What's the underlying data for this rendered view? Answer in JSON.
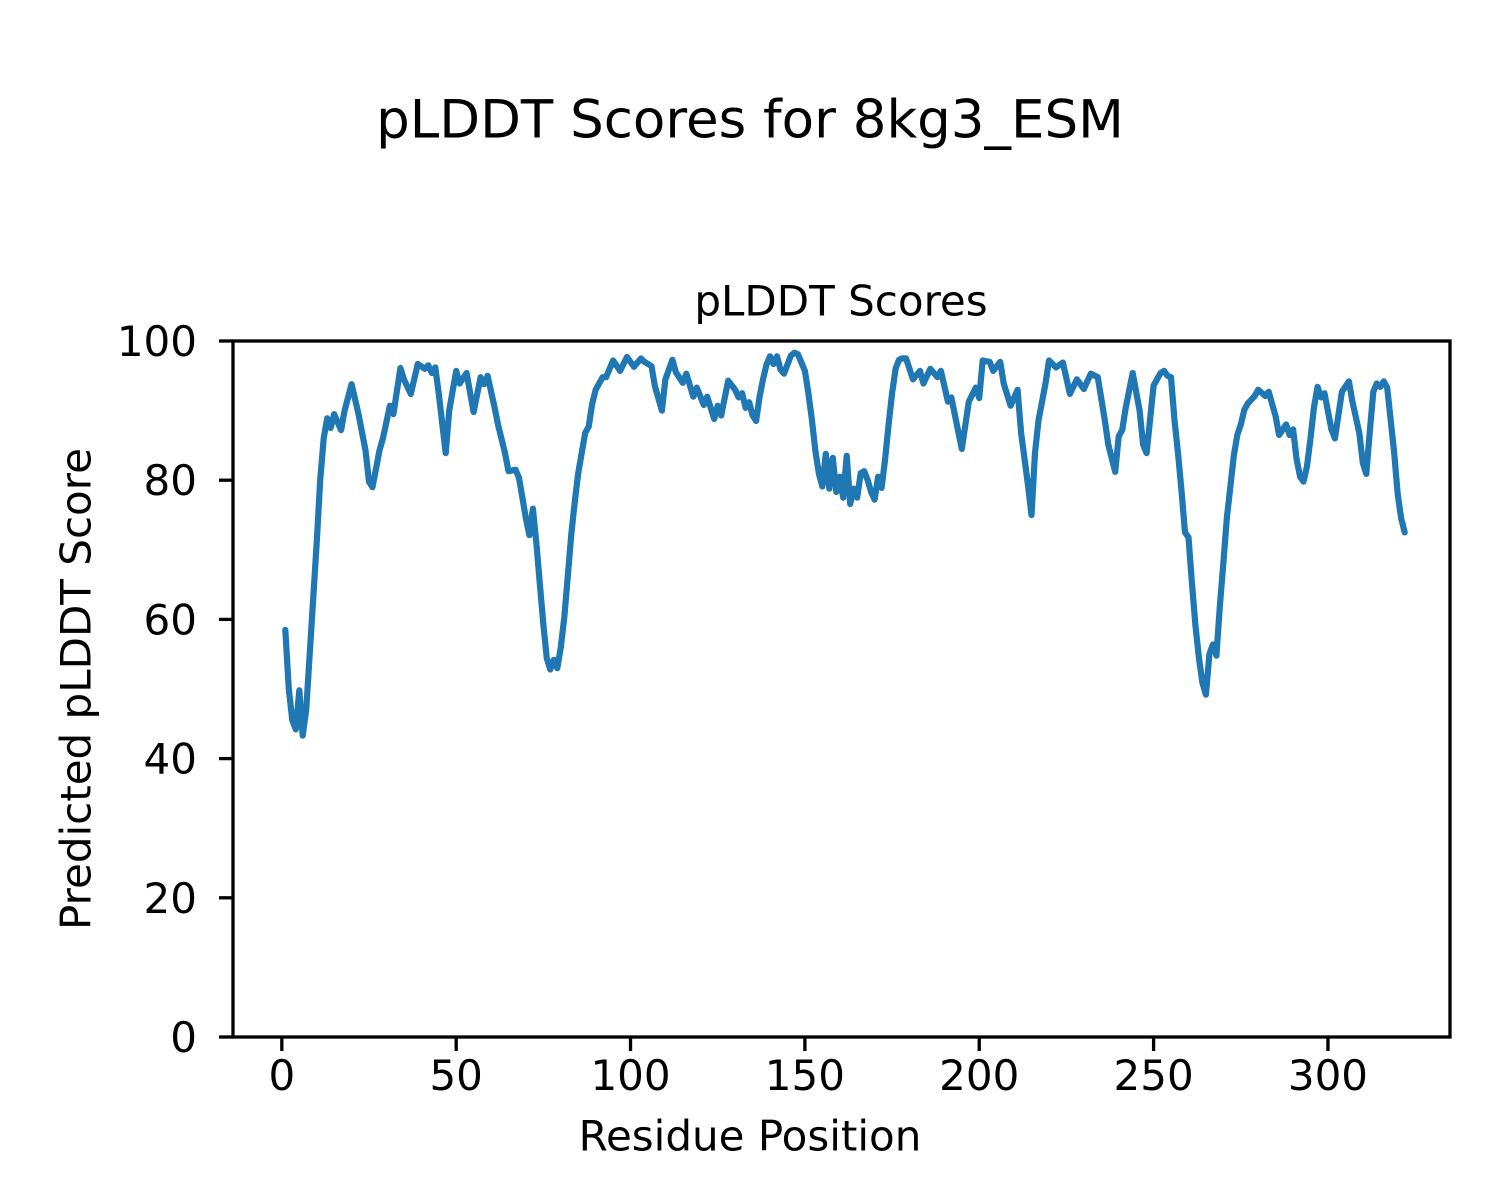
{
  "figure": {
    "suptitle": "pLDDT Scores for 8kg3_ESM",
    "axes_title": "pLDDT Scores",
    "xlabel": "Residue Position",
    "ylabel": "Predicted pLDDT Score",
    "background_color": "#ffffff",
    "line_color": "#1f77b4",
    "axis_color": "#000000"
  },
  "chart_data": {
    "type": "line",
    "title": "pLDDT Scores",
    "xlabel": "Residue Position",
    "ylabel": "Predicted pLDDT Score",
    "xlim": [
      -14,
      335
    ],
    "ylim": [
      0,
      100
    ],
    "xticks": [
      0,
      50,
      100,
      150,
      200,
      250,
      300
    ],
    "yticks": [
      0,
      20,
      40,
      60,
      80,
      100
    ],
    "grid": false,
    "legend_position": "none",
    "series": [
      {
        "name": "pLDDT",
        "color": "#1f77b4",
        "points": [
          [
            1,
            58.5
          ],
          [
            2,
            50
          ],
          [
            3,
            45.5
          ],
          [
            4,
            44.2
          ],
          [
            5,
            49.8
          ],
          [
            6,
            43.3
          ],
          [
            7,
            47
          ],
          [
            8,
            55
          ],
          [
            9,
            63
          ],
          [
            10,
            71
          ],
          [
            11,
            80
          ],
          [
            12,
            86
          ],
          [
            13,
            88.9
          ],
          [
            14,
            87.5
          ],
          [
            15,
            89.5
          ],
          [
            17,
            87.2
          ],
          [
            18,
            90
          ],
          [
            20,
            93.8
          ],
          [
            22,
            89.5
          ],
          [
            24,
            84.3
          ],
          [
            25,
            79.8
          ],
          [
            26,
            79
          ],
          [
            28,
            84.3
          ],
          [
            29,
            86
          ],
          [
            31,
            90.7
          ],
          [
            32,
            89.5
          ],
          [
            34,
            96.1
          ],
          [
            35,
            94.5
          ],
          [
            37,
            92.4
          ],
          [
            39,
            96.7
          ],
          [
            41,
            96
          ],
          [
            42,
            96.5
          ],
          [
            43,
            95.4
          ],
          [
            44,
            96.2
          ],
          [
            45,
            92.5
          ],
          [
            47,
            83.9
          ],
          [
            48,
            90
          ],
          [
            50,
            95.7
          ],
          [
            51,
            93.9
          ],
          [
            53,
            95.4
          ],
          [
            55,
            89.8
          ],
          [
            57,
            94.8
          ],
          [
            58,
            93.8
          ],
          [
            59,
            95
          ],
          [
            61,
            90.5
          ],
          [
            62,
            88
          ],
          [
            64,
            83.9
          ],
          [
            65,
            81.3
          ],
          [
            67,
            81.5
          ],
          [
            68,
            80.4
          ],
          [
            69,
            77.5
          ],
          [
            70,
            74.5
          ],
          [
            71,
            72.1
          ],
          [
            72,
            75.9
          ],
          [
            73,
            70.9
          ],
          [
            74,
            65
          ],
          [
            75,
            59.2
          ],
          [
            76,
            54.4
          ],
          [
            77,
            52.8
          ],
          [
            78,
            54.2
          ],
          [
            79,
            53
          ],
          [
            80,
            56
          ],
          [
            81,
            60.3
          ],
          [
            82,
            66.2
          ],
          [
            83,
            72.1
          ],
          [
            84,
            76.8
          ],
          [
            85,
            81
          ],
          [
            86,
            83.9
          ],
          [
            87,
            86.8
          ],
          [
            88,
            87.7
          ],
          [
            89,
            91
          ],
          [
            90,
            93
          ],
          [
            92,
            94.8
          ],
          [
            93,
            94.8
          ],
          [
            95,
            97.2
          ],
          [
            97,
            95.7
          ],
          [
            99,
            97.7
          ],
          [
            101,
            96.3
          ],
          [
            103,
            97.5
          ],
          [
            104,
            97
          ],
          [
            106,
            96.4
          ],
          [
            107,
            93.5
          ],
          [
            109,
            90
          ],
          [
            110,
            94.5
          ],
          [
            112,
            97.3
          ],
          [
            113,
            95.5
          ],
          [
            115,
            94
          ],
          [
            116,
            95.3
          ],
          [
            118,
            92
          ],
          [
            119,
            93.3
          ],
          [
            121,
            90.8
          ],
          [
            122,
            92
          ],
          [
            124,
            88.8
          ],
          [
            125,
            90.7
          ],
          [
            126,
            89.3
          ],
          [
            128,
            94.3
          ],
          [
            130,
            93
          ],
          [
            131,
            91.9
          ],
          [
            132,
            92.5
          ],
          [
            133,
            90.4
          ],
          [
            134,
            91.2
          ],
          [
            135,
            89.3
          ],
          [
            136,
            88.5
          ],
          [
            137,
            92
          ],
          [
            138,
            94.5
          ],
          [
            139,
            96.6
          ],
          [
            140,
            97.8
          ],
          [
            141,
            96.7
          ],
          [
            142,
            97.8
          ],
          [
            143,
            95.9
          ],
          [
            144,
            95.3
          ],
          [
            145,
            96.6
          ],
          [
            146,
            97.9
          ],
          [
            147,
            98.3
          ],
          [
            148,
            98.1
          ],
          [
            149,
            96.9
          ],
          [
            150,
            95.7
          ],
          [
            151,
            92.5
          ],
          [
            152,
            88.7
          ],
          [
            153,
            84.3
          ],
          [
            154,
            81
          ],
          [
            155,
            79.1
          ],
          [
            156,
            83.8
          ],
          [
            157,
            78.8
          ],
          [
            158,
            83.2
          ],
          [
            159,
            78.3
          ],
          [
            160,
            80.5
          ],
          [
            161,
            77.5
          ],
          [
            162,
            83.5
          ],
          [
            163,
            76.6
          ],
          [
            164,
            78.8
          ],
          [
            165,
            77.5
          ],
          [
            166,
            81
          ],
          [
            167,
            81.3
          ],
          [
            168,
            80
          ],
          [
            169,
            78.3
          ],
          [
            170,
            77.2
          ],
          [
            171,
            80.5
          ],
          [
            172,
            78.9
          ],
          [
            173,
            83
          ],
          [
            174,
            88
          ],
          [
            175,
            92.5
          ],
          [
            176,
            96
          ],
          [
            177,
            97.3
          ],
          [
            178,
            97.5
          ],
          [
            179,
            97.5
          ],
          [
            181,
            94.5
          ],
          [
            183,
            95.7
          ],
          [
            184,
            93.9
          ],
          [
            186,
            96
          ],
          [
            188,
            94.8
          ],
          [
            189,
            95.7
          ],
          [
            191,
            91.3
          ],
          [
            192,
            91.9
          ],
          [
            195,
            84.5
          ],
          [
            197,
            91.3
          ],
          [
            199,
            93.3
          ],
          [
            200,
            91.8
          ],
          [
            201,
            97.2
          ],
          [
            203,
            97
          ],
          [
            204,
            95.7
          ],
          [
            206,
            97
          ],
          [
            207,
            93.9
          ],
          [
            209,
            90.7
          ],
          [
            211,
            93
          ],
          [
            212,
            86.8
          ],
          [
            214,
            79.2
          ],
          [
            215,
            75
          ],
          [
            216,
            83.9
          ],
          [
            217,
            88.6
          ],
          [
            219,
            93.9
          ],
          [
            220,
            97.2
          ],
          [
            222,
            96.2
          ],
          [
            224,
            96.9
          ],
          [
            226,
            92.4
          ],
          [
            228,
            94.5
          ],
          [
            230,
            93.1
          ],
          [
            232,
            95.3
          ],
          [
            234,
            94.8
          ],
          [
            236,
            88.6
          ],
          [
            237,
            85.1
          ],
          [
            239,
            81.2
          ],
          [
            240,
            86.3
          ],
          [
            241,
            87.2
          ],
          [
            242,
            90.4
          ],
          [
            244,
            95.4
          ],
          [
            246,
            90
          ],
          [
            247,
            85.1
          ],
          [
            248,
            83.9
          ],
          [
            250,
            93.6
          ],
          [
            252,
            95.4
          ],
          [
            253,
            95.7
          ],
          [
            254,
            95
          ],
          [
            255,
            94.8
          ],
          [
            256,
            88.6
          ],
          [
            257,
            83.9
          ],
          [
            258,
            78.5
          ],
          [
            259,
            72.5
          ],
          [
            260,
            71.8
          ],
          [
            261,
            65.1
          ],
          [
            262,
            59.2
          ],
          [
            263,
            54.5
          ],
          [
            264,
            50.9
          ],
          [
            265,
            49.2
          ],
          [
            266,
            55
          ],
          [
            267,
            56.4
          ],
          [
            268,
            54.8
          ],
          [
            269,
            62
          ],
          [
            270,
            68
          ],
          [
            271,
            74.5
          ],
          [
            272,
            79
          ],
          [
            273,
            83.5
          ],
          [
            274,
            86.5
          ],
          [
            275,
            88
          ],
          [
            276,
            90.1
          ],
          [
            277,
            91
          ],
          [
            279,
            92.1
          ],
          [
            280,
            93
          ],
          [
            282,
            92.1
          ],
          [
            283,
            92.7
          ],
          [
            285,
            89.2
          ],
          [
            286,
            86.5
          ],
          [
            288,
            88
          ],
          [
            289,
            86.5
          ],
          [
            290,
            87.3
          ],
          [
            291,
            83
          ],
          [
            292,
            80.5
          ],
          [
            293,
            79.8
          ],
          [
            294,
            82
          ],
          [
            295,
            86
          ],
          [
            296,
            90.5
          ],
          [
            297,
            93.4
          ],
          [
            298,
            91.9
          ],
          [
            299,
            92.5
          ],
          [
            301,
            87.3
          ],
          [
            302,
            86
          ],
          [
            304,
            92.7
          ],
          [
            306,
            94.2
          ],
          [
            307,
            91.3
          ],
          [
            309,
            86.8
          ],
          [
            310,
            82.5
          ],
          [
            311,
            80.9
          ],
          [
            312,
            87
          ],
          [
            313,
            92.7
          ],
          [
            314,
            93.9
          ],
          [
            315,
            93.4
          ],
          [
            316,
            94.2
          ],
          [
            317,
            93.3
          ],
          [
            318,
            88.6
          ],
          [
            319,
            83.9
          ],
          [
            320,
            78
          ],
          [
            321,
            74.5
          ],
          [
            322,
            72.5
          ]
        ]
      }
    ]
  }
}
